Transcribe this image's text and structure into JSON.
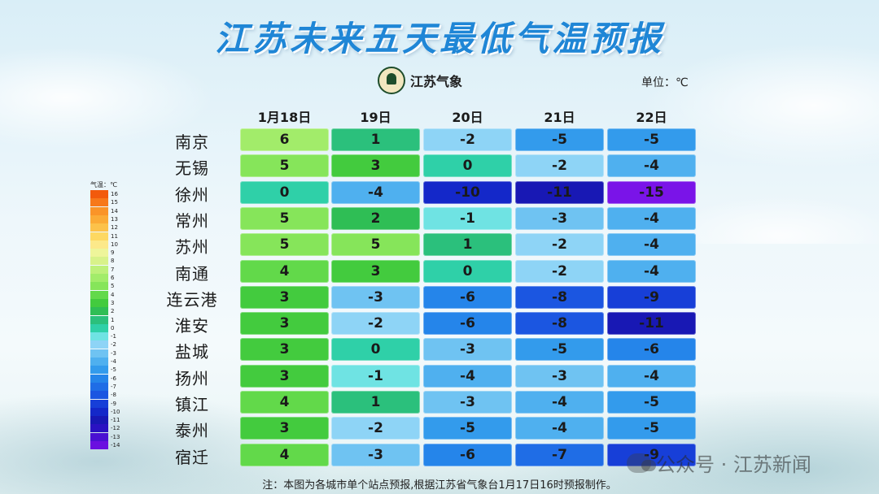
{
  "title": "江苏未来五天最低气温预报",
  "logo": {
    "text": "江苏气象"
  },
  "unit": "单位：℃",
  "columns": [
    "1月18日",
    "19日",
    "20日",
    "21日",
    "22日"
  ],
  "rows": [
    {
      "city": "南京",
      "values": [
        6,
        1,
        -2,
        -5,
        -5
      ]
    },
    {
      "city": "无锡",
      "values": [
        5,
        3,
        0,
        -2,
        -4
      ]
    },
    {
      "city": "徐州",
      "values": [
        0,
        -4,
        -10,
        -11,
        -15
      ]
    },
    {
      "city": "常州",
      "values": [
        5,
        2,
        -1,
        -3,
        -4
      ]
    },
    {
      "city": "苏州",
      "values": [
        5,
        5,
        1,
        -2,
        -4
      ]
    },
    {
      "city": "南通",
      "values": [
        4,
        3,
        0,
        -2,
        -4
      ]
    },
    {
      "city": "连云港",
      "values": [
        3,
        -3,
        -6,
        -8,
        -9
      ]
    },
    {
      "city": "淮安",
      "values": [
        3,
        -2,
        -6,
        -8,
        -11
      ]
    },
    {
      "city": "盐城",
      "values": [
        3,
        0,
        -3,
        -5,
        -6
      ]
    },
    {
      "city": "扬州",
      "values": [
        3,
        -1,
        -4,
        -3,
        -4
      ]
    },
    {
      "city": "镇江",
      "values": [
        4,
        1,
        -3,
        -4,
        -5
      ]
    },
    {
      "city": "泰州",
      "values": [
        3,
        -2,
        -5,
        -4,
        -5
      ]
    },
    {
      "city": "宿迁",
      "values": [
        4,
        -3,
        -6,
        -7,
        -9
      ]
    }
  ],
  "legend": {
    "title": "气温：℃",
    "labels": [
      "16",
      "15",
      "14",
      "13",
      "12",
      "11",
      "10",
      "9",
      "8",
      "7",
      "6",
      "5",
      "4",
      "3",
      "2",
      "1",
      "0",
      "-1",
      "-2",
      "-3",
      "-4",
      "-5",
      "-6",
      "-7",
      "-8",
      "-9",
      "-10",
      "-11",
      "-12",
      "-13",
      "-14"
    ],
    "colors": [
      "#f25a0c",
      "#f7781a",
      "#fa9428",
      "#fbab36",
      "#fcc24a",
      "#fdd862",
      "#fce98a",
      "#eef59a",
      "#d8f28a",
      "#bdf07a",
      "#a2ec6a",
      "#86e55a",
      "#62d94a",
      "#43cb3e",
      "#2fbe55",
      "#2bc07c",
      "#2fd0a8",
      "#6fe3e3",
      "#8ed4f6",
      "#6fc3f2",
      "#4fb0ef",
      "#339bec",
      "#2585ea",
      "#1f6de6",
      "#1b56e1",
      "#173fd8",
      "#1428c9",
      "#1818b4",
      "#2a12c2",
      "#4a10d2",
      "#6a0fe0"
    ]
  },
  "note": "注：本图为各城市单个站点预报,根据江苏省气象台1月17日16时预报制作。",
  "watermark": "公众号 · 江苏新闻"
}
